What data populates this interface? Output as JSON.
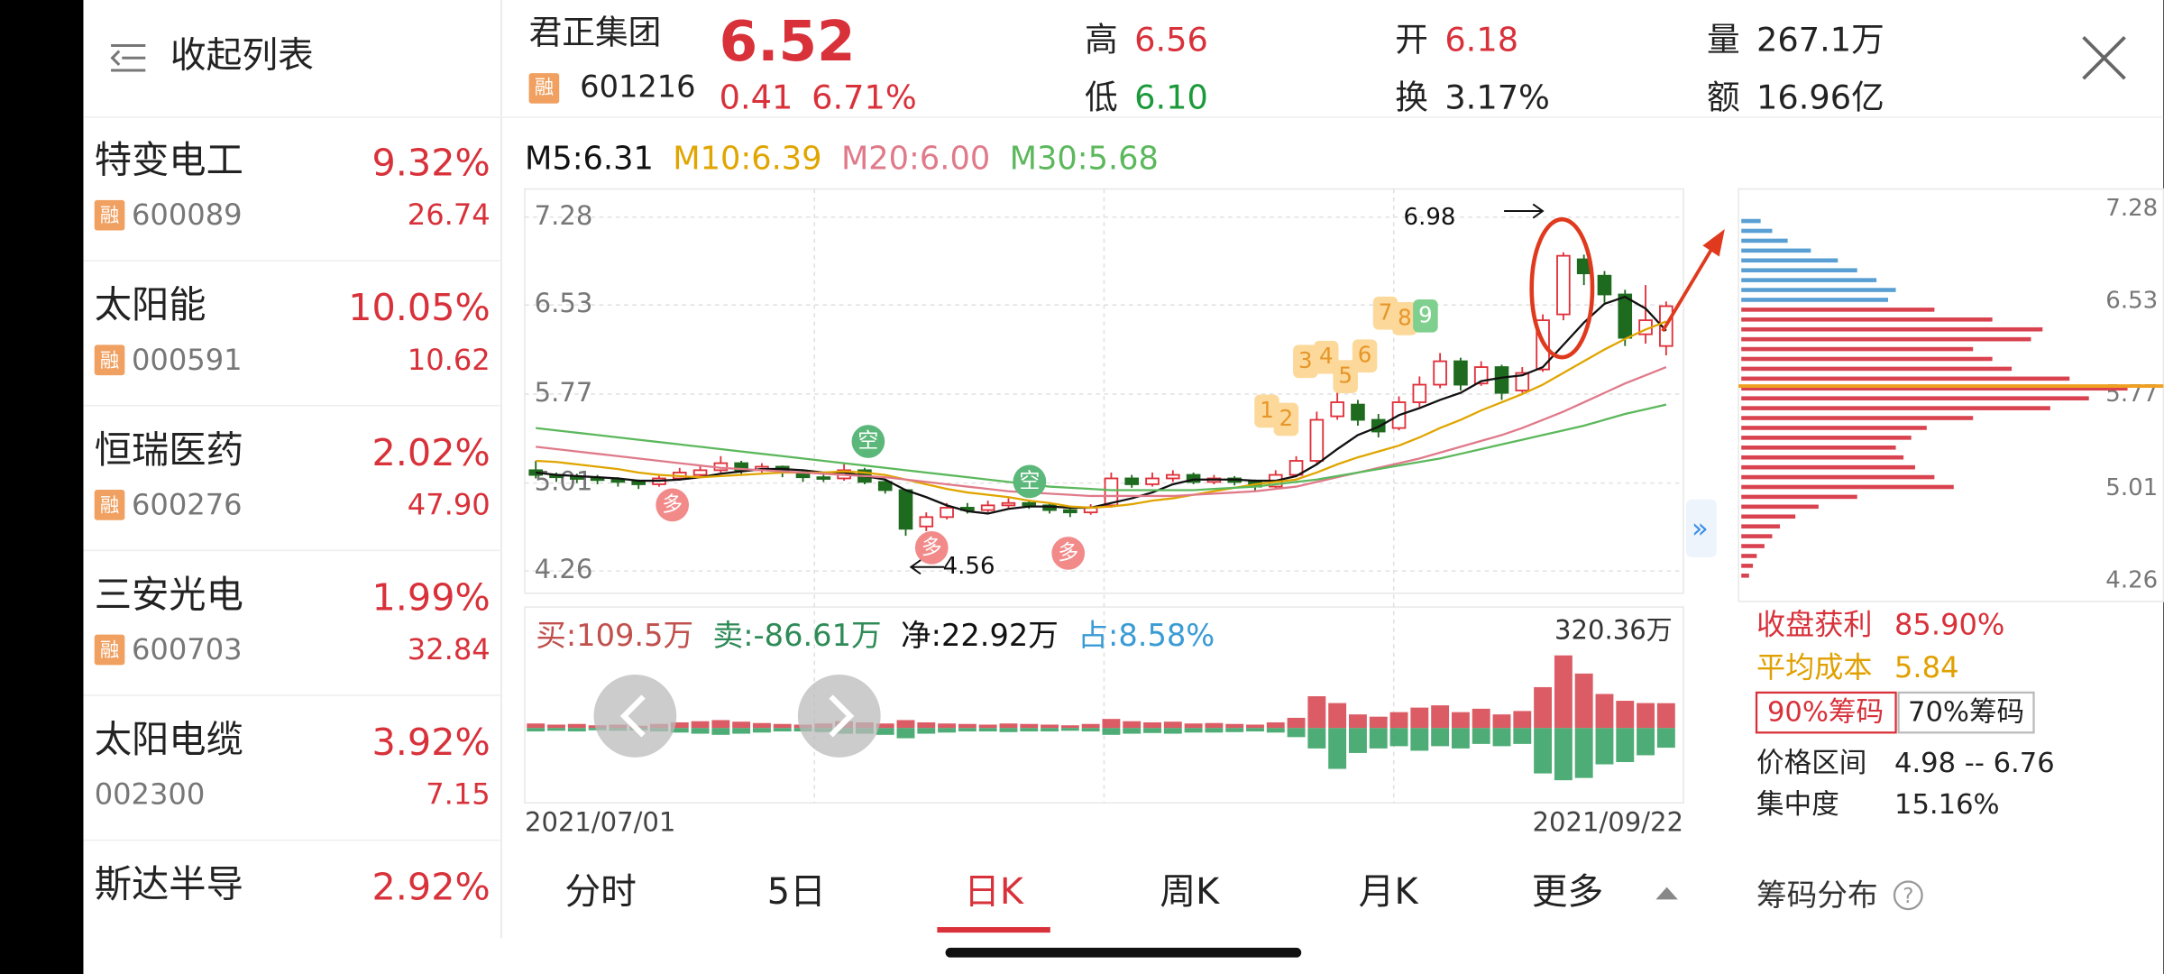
{
  "sidebar": {
    "collapse": "收起列表",
    "stocks": [
      {
        "name": "特变电工",
        "change": "9.32%",
        "tag": "融",
        "code": "600089",
        "price": "26.74"
      },
      {
        "name": "太阳能",
        "change": "10.05%",
        "tag": "融",
        "code": "000591",
        "price": "10.62"
      },
      {
        "name": "恒瑞医药",
        "change": "2.02%",
        "tag": "融",
        "code": "600276",
        "price": "47.90"
      },
      {
        "name": "三安光电",
        "change": "1.99%",
        "tag": "融",
        "code": "600703",
        "price": "32.84"
      },
      {
        "name": "太阳电缆",
        "change": "3.92%",
        "code": "002300",
        "price": "7.15"
      },
      {
        "name": "斯达半导",
        "change": "2.92%"
      }
    ]
  },
  "quote": {
    "name": "君正集团",
    "tag": "融",
    "code": "601216",
    "price": "6.52",
    "change": "0.41",
    "change_pct": "6.71%",
    "high_label": "高",
    "high": "6.56",
    "low_label": "低",
    "low": "6.10",
    "open_label": "开",
    "open": "6.18",
    "turnover_label": "换",
    "turnover": "3.17%",
    "volume_label": "量",
    "volume": "267.1万",
    "amount_label": "额",
    "amount": "16.96亿"
  },
  "kline": {
    "type": "candlestick",
    "ylim": [
      4.07,
      7.52
    ],
    "yticks": [
      7.28,
      6.53,
      5.77,
      5.01,
      4.26
    ],
    "start_date": "2021/07/01",
    "end_date": "2021/09/22",
    "high_note": "6.98",
    "low_note": "4.56",
    "signals": [
      "1",
      "2",
      "3",
      "4",
      "5",
      "6",
      "7",
      "8",
      "9"
    ],
    "sell_marker": "空",
    "buy_marker": "多",
    "ohlc": [
      [
        5.12,
        5.2,
        5.05,
        5.08
      ],
      [
        5.08,
        5.1,
        5.02,
        5.06
      ],
      [
        5.06,
        5.09,
        5.01,
        5.05
      ],
      [
        5.05,
        5.08,
        5.0,
        5.04
      ],
      [
        5.04,
        5.06,
        4.98,
        5.02
      ],
      [
        5.02,
        5.04,
        4.96,
        5.0
      ],
      [
        5.0,
        5.08,
        4.98,
        5.05
      ],
      [
        5.05,
        5.14,
        5.03,
        5.1
      ],
      [
        5.08,
        5.16,
        5.05,
        5.12
      ],
      [
        5.12,
        5.24,
        5.1,
        5.18
      ],
      [
        5.18,
        5.2,
        5.08,
        5.12
      ],
      [
        5.12,
        5.18,
        5.1,
        5.15
      ],
      [
        5.15,
        5.16,
        5.06,
        5.1
      ],
      [
        5.1,
        5.12,
        5.02,
        5.06
      ],
      [
        5.06,
        5.1,
        5.02,
        5.05
      ],
      [
        5.05,
        5.18,
        5.03,
        5.12
      ],
      [
        5.12,
        5.14,
        5.0,
        5.02
      ],
      [
        5.02,
        5.04,
        4.92,
        4.95
      ],
      [
        4.95,
        4.96,
        4.56,
        4.62
      ],
      [
        4.64,
        4.76,
        4.6,
        4.72
      ],
      [
        4.72,
        4.84,
        4.7,
        4.8
      ],
      [
        4.8,
        4.84,
        4.75,
        4.78
      ],
      [
        4.78,
        4.86,
        4.76,
        4.82
      ],
      [
        4.82,
        4.88,
        4.8,
        4.84
      ],
      [
        4.84,
        4.86,
        4.79,
        4.82
      ],
      [
        4.82,
        4.84,
        4.75,
        4.78
      ],
      [
        4.78,
        4.8,
        4.72,
        4.76
      ],
      [
        4.76,
        4.83,
        4.74,
        4.8
      ],
      [
        4.82,
        5.1,
        4.8,
        5.05
      ],
      [
        5.05,
        5.08,
        4.97,
        5.0
      ],
      [
        5.0,
        5.1,
        4.98,
        5.05
      ],
      [
        5.05,
        5.12,
        5.02,
        5.08
      ],
      [
        5.08,
        5.1,
        5.0,
        5.02
      ],
      [
        5.02,
        5.08,
        5.0,
        5.05
      ],
      [
        5.05,
        5.07,
        4.99,
        5.02
      ],
      [
        5.02,
        5.04,
        4.94,
        4.98
      ],
      [
        4.98,
        5.12,
        4.96,
        5.08
      ],
      [
        5.08,
        5.24,
        5.06,
        5.2
      ],
      [
        5.2,
        5.62,
        5.18,
        5.55
      ],
      [
        5.58,
        5.8,
        5.55,
        5.7
      ],
      [
        5.68,
        5.72,
        5.5,
        5.55
      ],
      [
        5.55,
        5.6,
        5.4,
        5.45
      ],
      [
        5.48,
        5.75,
        5.46,
        5.7
      ],
      [
        5.7,
        5.92,
        5.66,
        5.85
      ],
      [
        5.85,
        6.12,
        5.82,
        6.05
      ],
      [
        6.05,
        6.08,
        5.8,
        5.85
      ],
      [
        5.86,
        6.05,
        5.84,
        6.0
      ],
      [
        6.0,
        6.02,
        5.72,
        5.78
      ],
      [
        5.8,
        6.0,
        5.78,
        5.95
      ],
      [
        5.98,
        6.45,
        5.96,
        6.4
      ],
      [
        6.45,
        6.98,
        6.4,
        6.95
      ],
      [
        6.92,
        6.96,
        6.7,
        6.8
      ],
      [
        6.78,
        6.82,
        6.55,
        6.62
      ],
      [
        6.62,
        6.66,
        6.18,
        6.25
      ],
      [
        6.28,
        6.7,
        6.2,
        6.4
      ],
      [
        6.18,
        6.56,
        6.1,
        6.52
      ]
    ],
    "series": [
      {
        "name": "M5:6.31",
        "color": "#111111",
        "values": [
          5.1,
          5.08,
          5.07,
          5.06,
          5.05,
          5.03,
          5.03,
          5.04,
          5.06,
          5.09,
          5.11,
          5.13,
          5.13,
          5.12,
          5.1,
          5.1,
          5.07,
          5.04,
          4.95,
          4.89,
          4.82,
          4.77,
          4.75,
          4.79,
          4.81,
          4.81,
          4.8,
          4.8,
          4.84,
          4.88,
          4.93,
          5.0,
          5.04,
          5.04,
          5.04,
          5.03,
          5.03,
          5.07,
          5.17,
          5.3,
          5.42,
          5.49,
          5.59,
          5.65,
          5.72,
          5.78,
          5.88,
          5.91,
          5.93,
          6.0,
          6.19,
          6.38,
          6.54,
          6.6,
          6.5,
          6.31
        ]
      },
      {
        "name": "M10:6.39",
        "color": "#e0a500",
        "values": [
          5.2,
          5.19,
          5.17,
          5.15,
          5.13,
          5.1,
          5.08,
          5.07,
          5.06,
          5.07,
          5.08,
          5.09,
          5.1,
          5.1,
          5.1,
          5.11,
          5.1,
          5.08,
          5.04,
          5.0,
          4.96,
          4.93,
          4.91,
          4.89,
          4.86,
          4.84,
          4.81,
          4.8,
          4.81,
          4.83,
          4.86,
          4.88,
          4.91,
          4.94,
          4.97,
          5.0,
          5.02,
          5.04,
          5.1,
          5.17,
          5.23,
          5.28,
          5.33,
          5.4,
          5.48,
          5.55,
          5.63,
          5.7,
          5.77,
          5.85,
          5.95,
          6.05,
          6.15,
          6.24,
          6.32,
          6.39
        ]
      },
      {
        "name": "M20:6.00",
        "color": "#e07a8a",
        "values": [
          5.32,
          5.3,
          5.28,
          5.26,
          5.24,
          5.22,
          5.2,
          5.18,
          5.16,
          5.14,
          5.13,
          5.12,
          5.11,
          5.1,
          5.09,
          5.08,
          5.07,
          5.06,
          5.04,
          5.02,
          5.0,
          4.98,
          4.96,
          4.94,
          4.93,
          4.92,
          4.91,
          4.9,
          4.9,
          4.9,
          4.9,
          4.9,
          4.91,
          4.92,
          4.93,
          4.94,
          4.96,
          4.98,
          5.02,
          5.06,
          5.1,
          5.14,
          5.18,
          5.22,
          5.27,
          5.32,
          5.37,
          5.42,
          5.48,
          5.55,
          5.62,
          5.7,
          5.78,
          5.86,
          5.93,
          6.0
        ]
      },
      {
        "name": "M30:5.68",
        "color": "#5cb85c",
        "values": [
          5.48,
          5.46,
          5.44,
          5.42,
          5.4,
          5.38,
          5.36,
          5.34,
          5.32,
          5.3,
          5.28,
          5.26,
          5.24,
          5.22,
          5.2,
          5.18,
          5.16,
          5.14,
          5.12,
          5.1,
          5.08,
          5.06,
          5.04,
          5.02,
          5.0,
          4.98,
          4.97,
          4.96,
          4.95,
          4.95,
          4.95,
          4.95,
          4.95,
          4.96,
          4.97,
          4.98,
          5.0,
          5.02,
          5.04,
          5.07,
          5.1,
          5.13,
          5.16,
          5.19,
          5.22,
          5.26,
          5.3,
          5.34,
          5.38,
          5.42,
          5.46,
          5.5,
          5.55,
          5.6,
          5.64,
          5.68
        ]
      }
    ]
  },
  "flow": {
    "type": "bar",
    "buy_label": "买:109.5万",
    "sell_label": "卖:-86.61万",
    "net_label": "净:22.92万",
    "share_label": "占:8.58%",
    "ylim": [
      -330,
      320.36
    ],
    "yticks": [
      {
        "value": 320.36,
        "label": "320.36万"
      }
    ],
    "buy": [
      20,
      15,
      18,
      12,
      15,
      10,
      18,
      25,
      30,
      35,
      28,
      22,
      18,
      15,
      20,
      30,
      25,
      20,
      35,
      25,
      20,
      18,
      15,
      20,
      18,
      15,
      12,
      18,
      40,
      30,
      25,
      28,
      20,
      22,
      18,
      15,
      25,
      45,
      140,
      110,
      60,
      50,
      70,
      90,
      100,
      70,
      85,
      60,
      75,
      180,
      320,
      240,
      150,
      120,
      110,
      109.5
    ],
    "sell": [
      -15,
      -12,
      -15,
      -10,
      -12,
      -10,
      -15,
      -20,
      -25,
      -30,
      -25,
      -20,
      -15,
      -15,
      -18,
      -25,
      -25,
      -30,
      -45,
      -25,
      -20,
      -15,
      -15,
      -18,
      -15,
      -15,
      -12,
      -15,
      -30,
      -25,
      -22,
      -25,
      -20,
      -20,
      -18,
      -15,
      -20,
      -40,
      -90,
      -180,
      -110,
      -90,
      -80,
      -100,
      -80,
      -90,
      -70,
      -80,
      -70,
      -200,
      -230,
      -220,
      -160,
      -150,
      -120,
      -86.61
    ]
  },
  "tabs": {
    "items": [
      "分时",
      "5日",
      "日K",
      "周K",
      "月K",
      "更多"
    ],
    "active": 2
  },
  "chips": {
    "type": "bar",
    "ylim": [
      4.09,
      7.44
    ],
    "yticks": [
      7.28,
      6.53,
      5.77,
      5.01,
      4.26
    ],
    "xlim": [
      0,
      100
    ],
    "prices": [
      4.3,
      4.38,
      4.46,
      4.54,
      4.62,
      4.7,
      4.78,
      4.86,
      4.94,
      5.02,
      5.1,
      5.18,
      5.26,
      5.34,
      5.42,
      5.5,
      5.58,
      5.66,
      5.74,
      5.82,
      5.9,
      5.98,
      6.06,
      6.14,
      6.22,
      6.3,
      6.38,
      6.46,
      6.54,
      6.62,
      6.7,
      6.78,
      6.86,
      6.94,
      7.02,
      7.1,
      7.18
    ],
    "values": [
      2,
      3,
      4,
      6,
      8,
      10,
      14,
      20,
      30,
      55,
      50,
      45,
      42,
      40,
      44,
      48,
      60,
      80,
      90,
      100,
      85,
      70,
      65,
      60,
      75,
      78,
      65,
      50,
      38,
      40,
      35,
      30,
      25,
      18,
      12,
      8,
      5
    ],
    "profit_label": "收盘获利",
    "profit": "85.90%",
    "avg_label": "平均成本",
    "avg": "5.84",
    "buttons": [
      "90%筹码",
      "70%筹码"
    ],
    "range_label": "价格区间",
    "range": "4.98 -- 6.76",
    "conc_label": "集中度",
    "conc": "15.16%",
    "footer": "筹码分布",
    "help": "?"
  }
}
